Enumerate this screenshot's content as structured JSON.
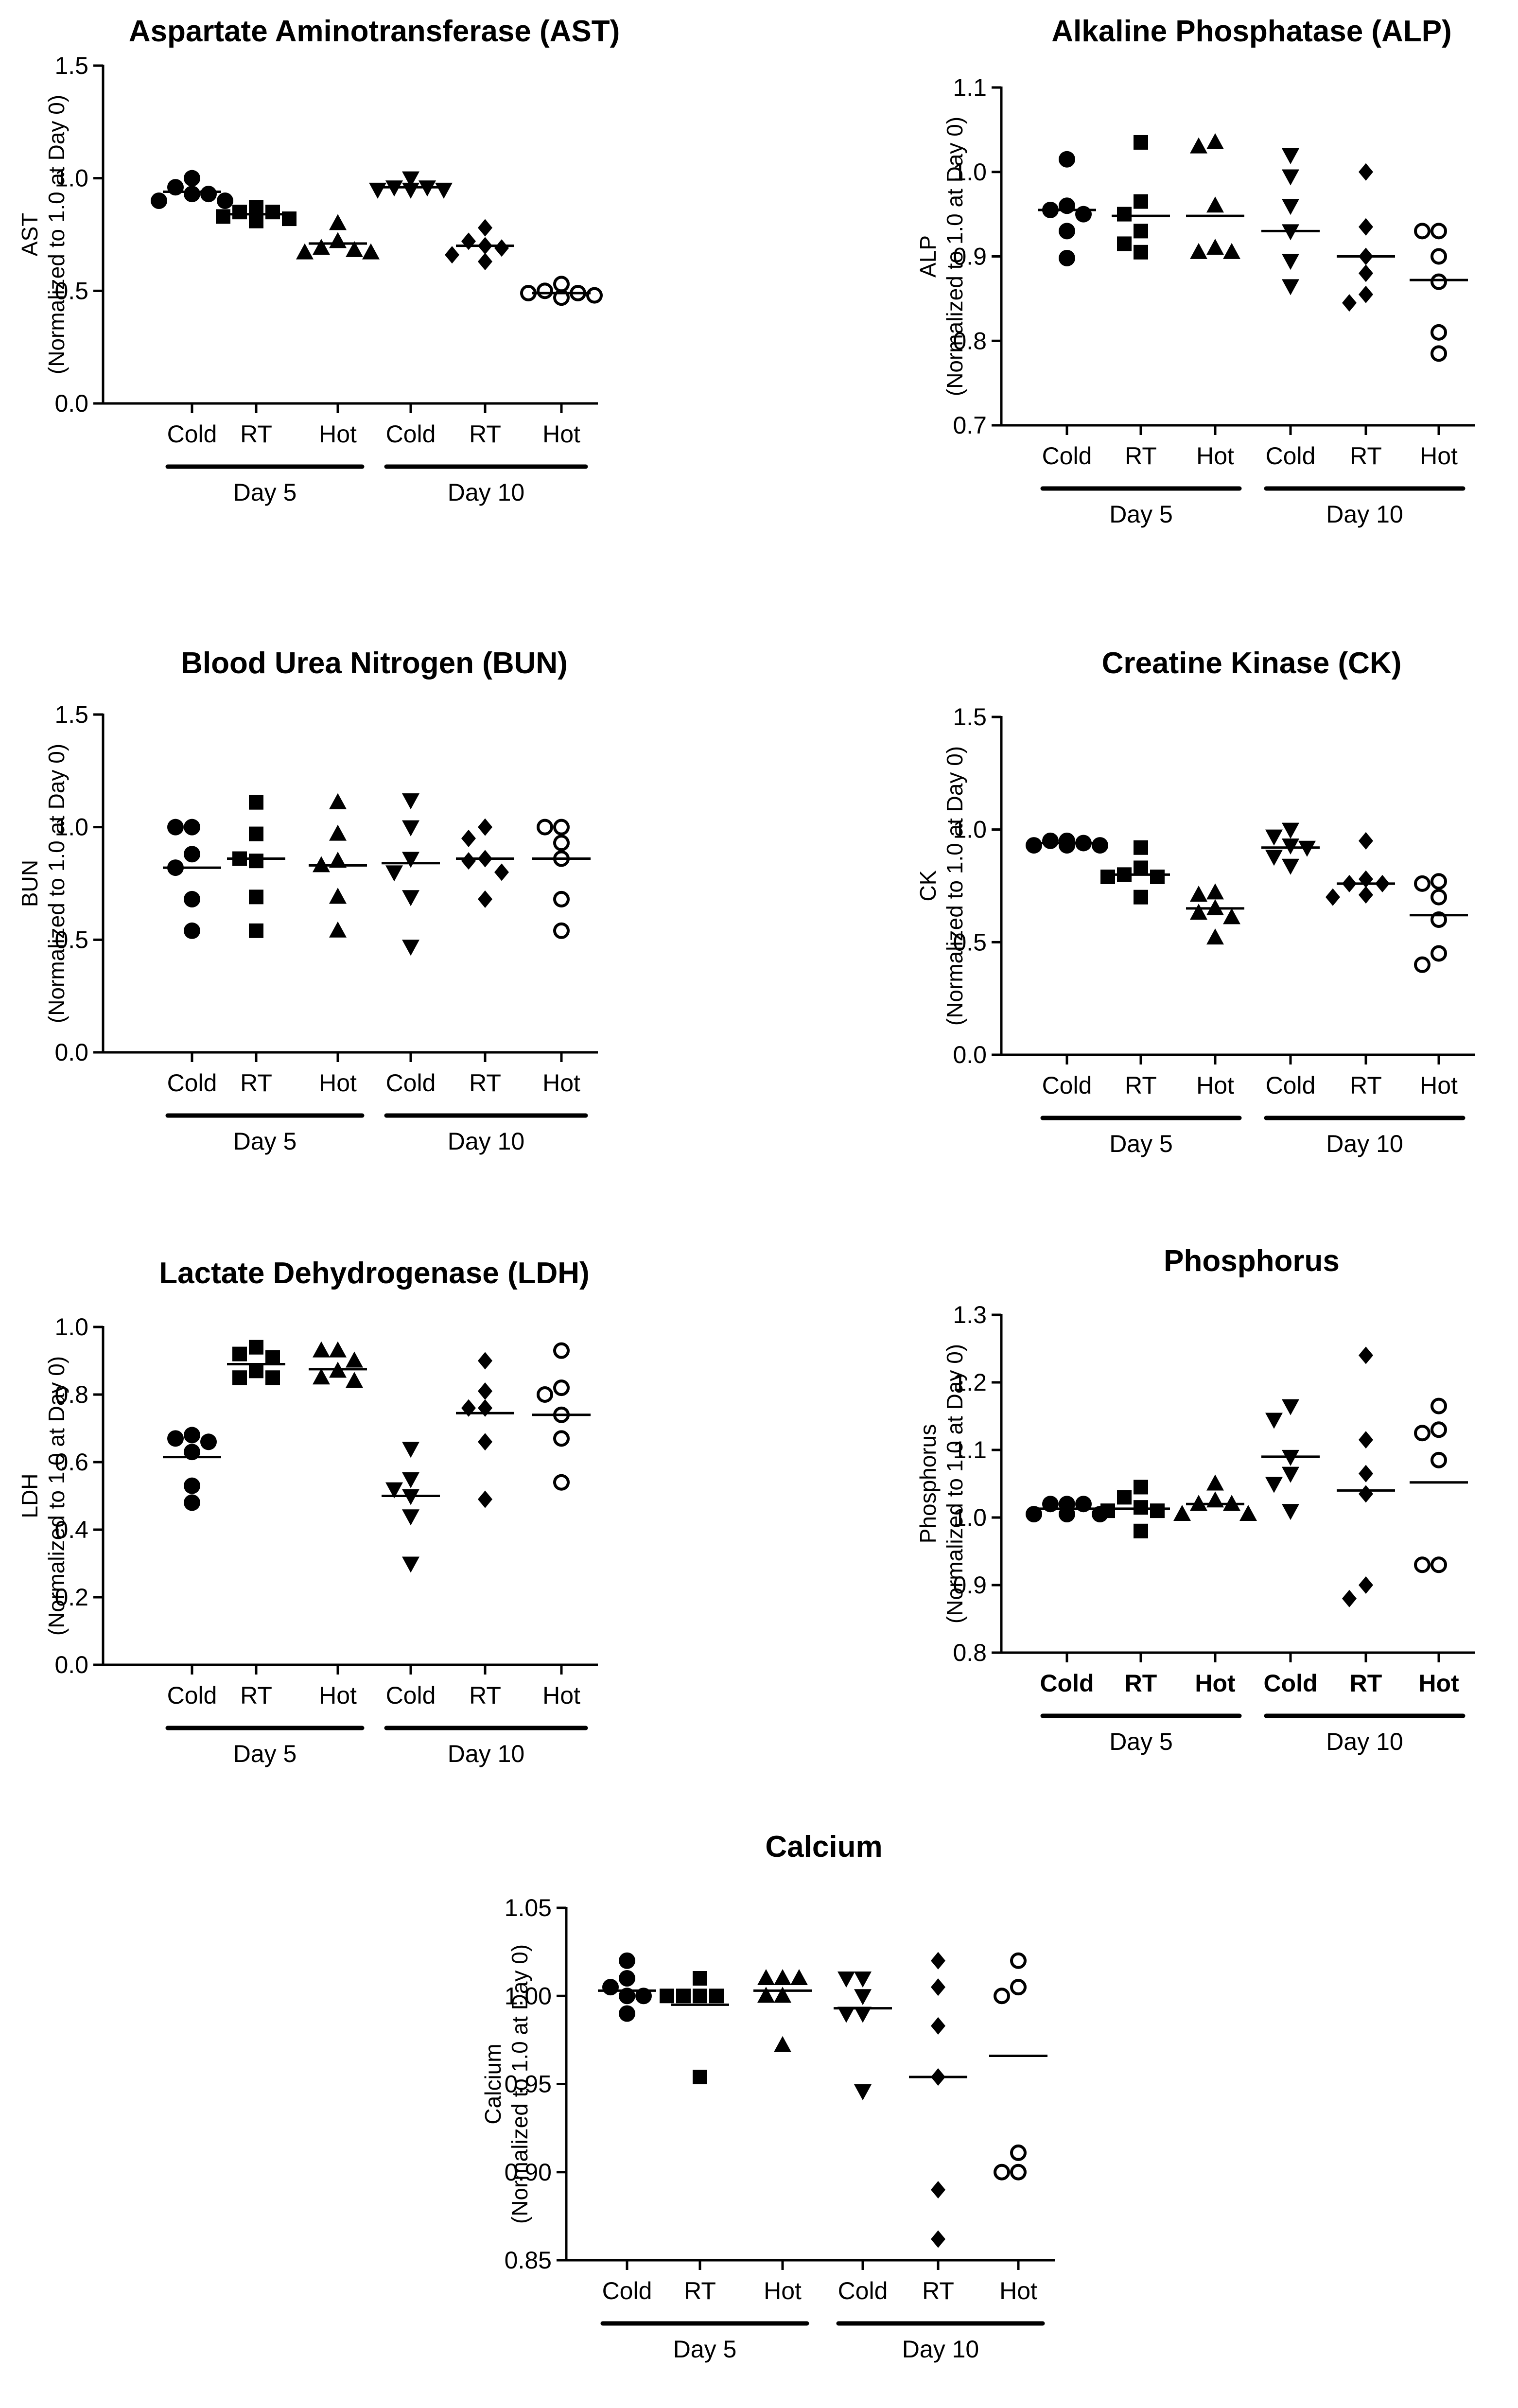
{
  "figure": {
    "categories": [
      "Cold",
      "RT",
      "Hot",
      "Cold",
      "RT",
      "Hot"
    ],
    "groups": [
      "Day 5",
      "Day 10"
    ],
    "ylabel_sub": "(Normalized to 1.0 at Day 0)"
  },
  "chart_data": [
    {
      "type": "scatter",
      "title": "Aspartate Aminotransferase (AST)",
      "ylabel": "AST",
      "ylim": [
        0.0,
        1.5
      ],
      "yticks": [
        "0.0",
        "0.5",
        "1.0",
        "1.5"
      ],
      "categories": [
        "Cold",
        "RT",
        "Hot",
        "Cold",
        "RT",
        "Hot"
      ],
      "groups": [
        "Day 5",
        "Day 10"
      ],
      "markers": [
        "circle",
        "square",
        "triangle",
        "triangle-down",
        "diamond",
        "circle-open"
      ],
      "means": [
        0.94,
        0.84,
        0.71,
        0.96,
        0.7,
        0.49
      ],
      "points": [
        [
          1.0,
          0.96,
          0.93,
          0.93,
          0.9,
          0.9
        ],
        [
          0.87,
          0.85,
          0.85,
          0.83,
          0.82,
          0.81
        ],
        [
          0.8,
          0.72,
          0.69,
          0.68,
          0.67,
          0.67
        ],
        [
          1.0,
          0.96,
          0.96,
          0.95,
          0.95,
          0.95
        ],
        [
          0.78,
          0.72,
          0.7,
          0.69,
          0.66,
          0.63
        ],
        [
          0.53,
          0.5,
          0.49,
          0.49,
          0.48,
          0.47
        ]
      ]
    },
    {
      "type": "scatter",
      "title": "Alkaline Phosphatase (ALP)",
      "ylabel": "ALP",
      "ylim": [
        0.7,
        1.1
      ],
      "yticks": [
        "0.7",
        "0.8",
        "0.9",
        "1.0",
        "1.1"
      ],
      "categories": [
        "Cold",
        "RT",
        "Hot",
        "Cold",
        "RT",
        "Hot"
      ],
      "groups": [
        "Day 5",
        "Day 10"
      ],
      "markers": [
        "circle",
        "square",
        "triangle",
        "triangle-down",
        "diamond",
        "circle-open"
      ],
      "means": [
        0.955,
        0.948,
        0.948,
        0.93,
        0.9,
        0.872
      ],
      "points": [
        [
          1.015,
          0.96,
          0.955,
          0.95,
          0.93,
          0.898
        ],
        [
          1.035,
          0.965,
          0.95,
          0.93,
          0.915,
          0.905
        ],
        [
          1.035,
          1.03,
          0.96,
          0.91,
          0.905,
          0.905
        ],
        [
          1.02,
          0.995,
          0.96,
          0.93,
          0.895,
          0.865
        ],
        [
          1.0,
          0.935,
          0.9,
          0.88,
          0.855,
          0.845
        ],
        [
          0.93,
          0.93,
          0.9,
          0.87,
          0.81,
          0.785
        ]
      ]
    },
    {
      "type": "scatter",
      "title": "Blood Urea Nitrogen (BUN)",
      "ylabel": "BUN",
      "ylim": [
        0.0,
        1.5
      ],
      "yticks": [
        "0.0",
        "0.5",
        "1.0",
        "1.5"
      ],
      "categories": [
        "Cold",
        "RT",
        "Hot",
        "Cold",
        "RT",
        "Hot"
      ],
      "groups": [
        "Day 5",
        "Day 10"
      ],
      "markers": [
        "circle",
        "square",
        "triangle",
        "triangle-down",
        "diamond",
        "circle-open"
      ],
      "means": [
        0.82,
        0.86,
        0.83,
        0.84,
        0.86,
        0.86
      ],
      "points": [
        [
          1.0,
          1.0,
          0.88,
          0.82,
          0.68,
          0.54
        ],
        [
          1.11,
          0.97,
          0.85,
          0.86,
          0.69,
          0.54
        ],
        [
          1.11,
          0.97,
          0.85,
          0.83,
          0.69,
          0.54
        ],
        [
          1.12,
          1.0,
          0.86,
          0.8,
          0.69,
          0.47
        ],
        [
          1.0,
          0.95,
          0.86,
          0.85,
          0.8,
          0.68
        ],
        [
          1.0,
          1.0,
          0.93,
          0.86,
          0.68,
          0.54
        ]
      ]
    },
    {
      "type": "scatter",
      "title": "Creatine Kinase (CK)",
      "ylabel": "CK",
      "ylim": [
        0.0,
        1.5
      ],
      "yticks": [
        "0.0",
        "0.5",
        "1.0",
        "1.5"
      ],
      "categories": [
        "Cold",
        "RT",
        "Hot",
        "Cold",
        "RT",
        "Hot"
      ],
      "groups": [
        "Day 5",
        "Day 10"
      ],
      "markers": [
        "circle",
        "square",
        "triangle",
        "triangle-down",
        "diamond",
        "circle-open"
      ],
      "means": [
        0.94,
        0.8,
        0.65,
        0.92,
        0.76,
        0.62
      ],
      "points": [
        [
          0.95,
          0.95,
          0.94,
          0.93,
          0.93,
          0.93
        ],
        [
          0.92,
          0.83,
          0.8,
          0.79,
          0.79,
          0.7
        ],
        [
          0.72,
          0.71,
          0.65,
          0.63,
          0.61,
          0.52
        ],
        [
          1.0,
          0.97,
          0.93,
          0.92,
          0.88,
          0.84
        ],
        [
          0.95,
          0.78,
          0.76,
          0.76,
          0.71,
          0.7
        ],
        [
          0.77,
          0.76,
          0.7,
          0.6,
          0.45,
          0.4
        ]
      ]
    },
    {
      "type": "scatter",
      "title": "Lactate Dehydrogenase (LDH)",
      "ylabel": "LDH",
      "ylim": [
        0.0,
        1.0
      ],
      "yticks": [
        "0.0",
        "0.2",
        "0.4",
        "0.6",
        "0.8",
        "1.0"
      ],
      "categories": [
        "Cold",
        "RT",
        "Hot",
        "Cold",
        "RT",
        "Hot"
      ],
      "groups": [
        "Day 5",
        "Day 10"
      ],
      "markers": [
        "circle",
        "square",
        "triangle",
        "triangle-down",
        "diamond",
        "circle-open"
      ],
      "means": [
        0.615,
        0.89,
        0.875,
        0.5,
        0.745,
        0.74
      ],
      "points": [
        [
          0.68,
          0.67,
          0.66,
          0.63,
          0.53,
          0.48
        ],
        [
          0.94,
          0.92,
          0.91,
          0.87,
          0.85,
          0.85
        ],
        [
          0.93,
          0.93,
          0.9,
          0.87,
          0.85,
          0.84
        ],
        [
          0.64,
          0.55,
          0.52,
          0.5,
          0.44,
          0.3
        ],
        [
          0.9,
          0.81,
          0.76,
          0.76,
          0.66,
          0.49
        ],
        [
          0.93,
          0.82,
          0.8,
          0.74,
          0.67,
          0.54
        ]
      ]
    },
    {
      "type": "scatter",
      "title": "Phosphorus",
      "ylabel": "Phosphorus",
      "ylim": [
        0.8,
        1.3
      ],
      "yticks": [
        "0.8",
        "0.9",
        "1.0",
        "1.1",
        "1.2",
        "1.3"
      ],
      "categories": [
        "Cold",
        "RT",
        "Hot",
        "Cold",
        "RT",
        "Hot"
      ],
      "groups": [
        "Day 5",
        "Day 10"
      ],
      "markers": [
        "circle",
        "square",
        "triangle",
        "triangle-down",
        "diamond",
        "circle-open"
      ],
      "bold_categories": true,
      "means": [
        1.013,
        1.013,
        1.02,
        1.09,
        1.04,
        1.052
      ],
      "points": [
        [
          1.02,
          1.02,
          1.02,
          1.005,
          1.005,
          1.005
        ],
        [
          1.045,
          1.03,
          1.015,
          1.01,
          1.01,
          0.98
        ],
        [
          1.05,
          1.025,
          1.02,
          1.02,
          1.005,
          1.005
        ],
        [
          1.165,
          1.145,
          1.09,
          1.065,
          1.05,
          1.01
        ],
        [
          1.24,
          1.115,
          1.065,
          1.035,
          0.9,
          0.88
        ],
        [
          1.165,
          1.13,
          1.125,
          1.085,
          0.93,
          0.93
        ]
      ]
    },
    {
      "type": "scatter",
      "title": "Calcium",
      "ylabel": "Calcium",
      "ylim": [
        0.85,
        1.05
      ],
      "yticks": [
        "0.85",
        "0.90",
        "0.95",
        "1.00",
        "1.05"
      ],
      "categories": [
        "Cold",
        "RT",
        "Hot",
        "Cold",
        "RT",
        "Hot"
      ],
      "groups": [
        "Day 5",
        "Day 10"
      ],
      "markers": [
        "circle",
        "square",
        "triangle",
        "triangle-down",
        "diamond",
        "circle-open"
      ],
      "means": [
        1.003,
        0.995,
        1.003,
        0.993,
        0.954,
        0.966
      ],
      "points": [
        [
          1.02,
          1.01,
          1.005,
          1.0,
          1.0,
          0.99
        ],
        [
          1.01,
          1.0,
          1.0,
          1.0,
          1.0,
          0.954
        ],
        [
          1.01,
          1.01,
          1.01,
          1.0,
          1.0,
          0.972
        ],
        [
          1.01,
          1.01,
          1.0,
          0.99,
          0.99,
          0.946
        ],
        [
          1.02,
          1.005,
          0.983,
          0.954,
          0.89,
          0.862
        ],
        [
          1.02,
          1.005,
          1.0,
          0.911,
          0.9,
          0.9
        ]
      ]
    }
  ]
}
